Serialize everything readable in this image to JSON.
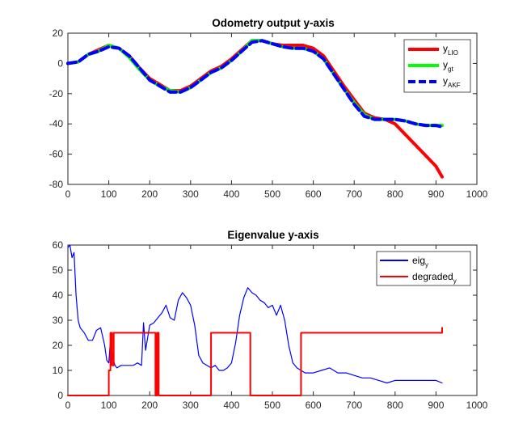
{
  "chart_data": [
    {
      "type": "line",
      "title": "Odometry output y-axis",
      "xlabel": "",
      "ylabel": "",
      "xlim": [
        0,
        1000
      ],
      "ylim": [
        -80,
        20
      ],
      "xticks": [
        "0",
        "100",
        "200",
        "300",
        "400",
        "500",
        "600",
        "700",
        "800",
        "900",
        "1000"
      ],
      "yticks": [
        "20",
        "0",
        "-20",
        "-40",
        "-60",
        "-80"
      ],
      "legend_position": "top-right",
      "series": [
        {
          "name": "y_LIO",
          "label_main": "y",
          "label_sub": "LIO",
          "color": "#ff0000",
          "style": "solid",
          "x": [
            0,
            25,
            50,
            75,
            100,
            125,
            150,
            175,
            200,
            225,
            250,
            275,
            300,
            325,
            350,
            375,
            400,
            425,
            450,
            475,
            500,
            525,
            550,
            575,
            600,
            625,
            650,
            675,
            700,
            725,
            750,
            775,
            800,
            825,
            850,
            875,
            900,
            915
          ],
          "y": [
            0,
            1,
            6,
            9,
            12,
            10,
            5,
            -3,
            -10,
            -14,
            -18,
            -18,
            -15,
            -10,
            -5,
            -2,
            3,
            9,
            15,
            15,
            13,
            12,
            12,
            12,
            10,
            5,
            -5,
            -15,
            -24,
            -33,
            -36,
            -37,
            -40,
            -47,
            -54,
            -61,
            -68,
            -75
          ]
        },
        {
          "name": "y_gt",
          "label_main": "y",
          "label_sub": "gt",
          "color": "#00ff00",
          "style": "solid",
          "x": [
            0,
            25,
            50,
            75,
            100,
            125,
            150,
            175,
            200,
            225,
            250,
            275,
            300,
            325,
            350,
            375,
            400,
            425,
            450,
            475,
            500,
            525,
            550,
            575,
            600,
            625,
            650,
            675,
            700,
            725,
            750,
            775,
            800,
            825,
            850,
            875,
            900,
            915
          ],
          "y": [
            0,
            1,
            6,
            8,
            12,
            10,
            4,
            -4,
            -11,
            -15,
            -18,
            -19,
            -16,
            -11,
            -6,
            -3,
            2,
            8,
            15,
            15,
            13,
            11,
            10,
            10,
            8,
            3,
            -7,
            -17,
            -26,
            -34,
            -37,
            -37,
            -37,
            -38,
            -40,
            -41,
            -41,
            -41
          ]
        },
        {
          "name": "y_AKF",
          "label_main": "y",
          "label_sub": "AKF",
          "color": "#0000ff",
          "style": "dashed",
          "x": [
            0,
            25,
            50,
            75,
            100,
            125,
            150,
            175,
            200,
            225,
            250,
            275,
            300,
            325,
            350,
            375,
            400,
            425,
            450,
            475,
            500,
            525,
            550,
            575,
            600,
            625,
            650,
            675,
            700,
            725,
            750,
            775,
            800,
            825,
            850,
            875,
            900,
            915
          ],
          "y": [
            0,
            1,
            6,
            8,
            11,
            10,
            5,
            -3,
            -11,
            -15,
            -19,
            -19,
            -16,
            -11,
            -6,
            -3,
            2,
            8,
            14,
            15,
            13,
            11,
            10,
            10,
            8,
            3,
            -7,
            -17,
            -27,
            -35,
            -37,
            -37,
            -37,
            -38,
            -40,
            -41,
            -41,
            -42
          ]
        }
      ]
    },
    {
      "type": "line",
      "title": "Eigenvalue y-axis",
      "xlabel": "",
      "ylabel": "",
      "xlim": [
        0,
        1000
      ],
      "ylim": [
        0,
        60
      ],
      "xticks": [
        "0",
        "100",
        "200",
        "300",
        "400",
        "500",
        "600",
        "700",
        "800",
        "900",
        "1000"
      ],
      "yticks": [
        "60",
        "50",
        "40",
        "30",
        "20",
        "10",
        "0"
      ],
      "legend_position": "top-right",
      "series": [
        {
          "name": "eig_y",
          "label_main": "eig",
          "label_sub": "y",
          "color": "#0000ff",
          "style": "solid",
          "x": [
            0,
            5,
            10,
            15,
            20,
            25,
            30,
            40,
            50,
            60,
            70,
            80,
            90,
            95,
            100,
            105,
            110,
            115,
            120,
            130,
            140,
            150,
            160,
            170,
            180,
            185,
            190,
            200,
            210,
            220,
            230,
            240,
            250,
            260,
            270,
            280,
            290,
            300,
            310,
            320,
            330,
            340,
            350,
            360,
            370,
            380,
            390,
            400,
            410,
            420,
            430,
            440,
            450,
            460,
            470,
            480,
            490,
            500,
            510,
            520,
            530,
            540,
            550,
            560,
            570,
            580,
            600,
            620,
            640,
            660,
            680,
            700,
            720,
            740,
            760,
            780,
            800,
            820,
            840,
            860,
            880,
            900,
            915
          ],
          "y": [
            59,
            60,
            55,
            57,
            40,
            30,
            27,
            25,
            22,
            22,
            26,
            27,
            20,
            14,
            13,
            24,
            15,
            12,
            11,
            12,
            12,
            12,
            12,
            13,
            12,
            29,
            18,
            28,
            29,
            31,
            33,
            36,
            31,
            30,
            38,
            41,
            39,
            36,
            28,
            16,
            13,
            12,
            11,
            12,
            10,
            10,
            11,
            13,
            21,
            32,
            39,
            43,
            41,
            40,
            38,
            37,
            35,
            36,
            32,
            36,
            30,
            20,
            13,
            11,
            10,
            9,
            9,
            10,
            11,
            9,
            9,
            8,
            7,
            7,
            6,
            5,
            6,
            6,
            6,
            6,
            6,
            6,
            5
          ]
        },
        {
          "name": "degraded_y",
          "label_main": "degraded",
          "label_sub": "y",
          "color": "#ff0000",
          "style": "solid",
          "x": [
            0,
            100,
            100,
            104,
            104,
            108,
            108,
            112,
            112,
            214,
            214,
            218,
            218,
            222,
            222,
            350,
            350,
            354,
            354,
            446,
            446,
            450,
            450,
            570,
            570,
            915,
            915
          ],
          "y": [
            0,
            0,
            10,
            10,
            25,
            25,
            12,
            12,
            25,
            25,
            0,
            0,
            25,
            25,
            0,
            0,
            25,
            25,
            25,
            25,
            0,
            0,
            0,
            0,
            25,
            25,
            27
          ]
        }
      ]
    }
  ]
}
